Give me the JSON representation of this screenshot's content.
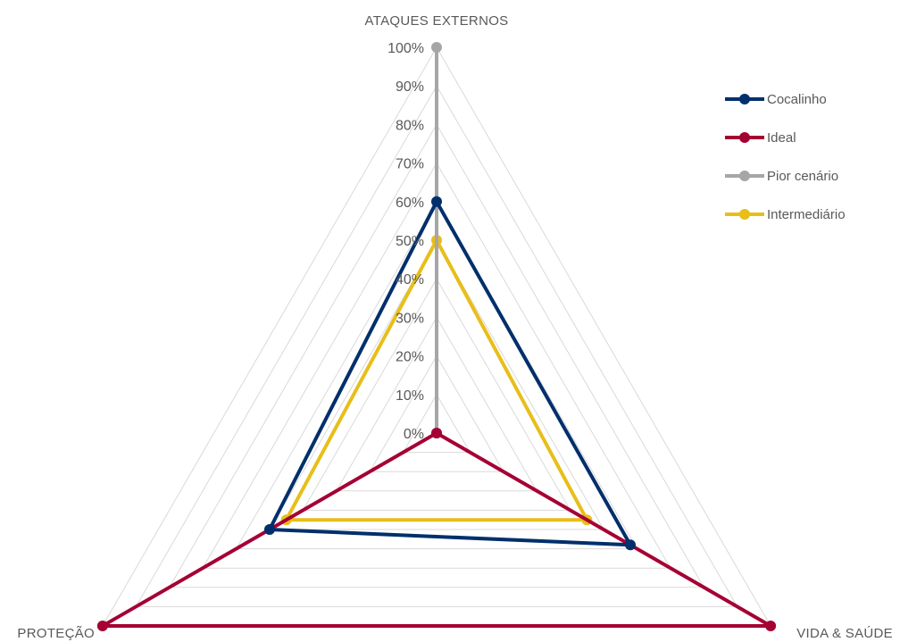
{
  "chart_data": {
    "type": "radar",
    "axes": [
      "ATAQUES EXTERNOS",
      "VIDA & SAÚDE",
      "PROTEÇÃO"
    ],
    "r_ticks": [
      "0%",
      "10%",
      "20%",
      "30%",
      "40%",
      "50%",
      "60%",
      "70%",
      "80%",
      "90%",
      "100%"
    ],
    "r_range": [
      0,
      100
    ],
    "gridlines": true,
    "legend_position": "right",
    "series": [
      {
        "name": "Cocalinho",
        "color": "#002F6C",
        "values": [
          60,
          58,
          50
        ]
      },
      {
        "name": "Ideal",
        "color": "#A50034",
        "values": [
          0,
          100,
          100
        ]
      },
      {
        "name": "Pior cenário",
        "color": "#A6A6A6",
        "values": [
          100,
          0,
          0
        ]
      },
      {
        "name": "Intermediário",
        "color": "#E8BE19",
        "values": [
          50,
          45,
          45
        ]
      }
    ]
  }
}
